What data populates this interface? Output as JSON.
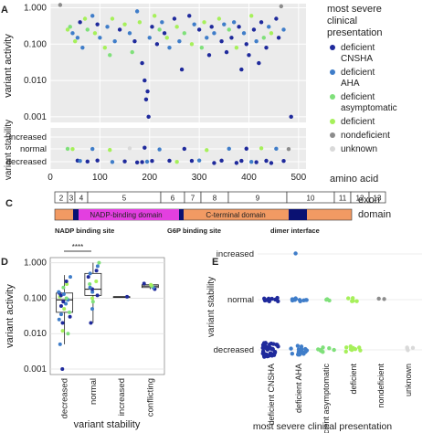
{
  "colors": {
    "deficient_CNSHA": "#1f2a9c",
    "deficient_AHA": "#3f7dc9",
    "deficient_asymptomatic": "#7fe07a",
    "deficient": "#a6f05a",
    "nondeficient": "#8c8c8c",
    "unknown": "#d9d9d9",
    "nadp_domain": "#e33fe0",
    "cterm_domain": "#f29a63",
    "dark_domain": "#0a1172",
    "panel_bg": "#ebebeb",
    "grid": "#ffffff"
  },
  "panelA": {
    "ylabel": "variant activity",
    "yticks": [
      "1.000",
      "0.100",
      "0.010",
      "0.001"
    ],
    "legend_title": "most severe clinical presentation",
    "legend_title_lines": [
      "most severe",
      "clinical",
      "presentation"
    ],
    "legend": [
      {
        "key": "deficient_CNSHA",
        "lines": [
          "deficient",
          "CNSHA"
        ]
      },
      {
        "key": "deficient_AHA",
        "lines": [
          "deficient",
          "AHA"
        ]
      },
      {
        "key": "deficient_asymptomatic",
        "lines": [
          "deficient",
          "asymptomatic"
        ]
      },
      {
        "key": "deficient",
        "lines": [
          "deficient"
        ]
      },
      {
        "key": "nondeficient",
        "lines": [
          "nondeficient"
        ]
      },
      {
        "key": "unknown",
        "lines": [
          "unknown"
        ]
      }
    ]
  },
  "panelB": {
    "ylabel": "variant stability",
    "ylabel_visible": "variant stability",
    "yticks": [
      "increased",
      "normal",
      "decreased"
    ],
    "xticks": [
      "0",
      "100",
      "200",
      "300",
      "400",
      "500"
    ],
    "xlabel": "amino acid"
  },
  "panelC": {
    "label": "C",
    "exon_label": "exon",
    "domain_label": "domain",
    "exons": [
      "2",
      "3",
      "4",
      "5",
      "6",
      "7",
      "8",
      "9",
      "10",
      "11",
      "12",
      "13"
    ],
    "nadp_domain": "NADP-binding domain",
    "cterm_domain": "C-terminal domain",
    "sites": [
      "NADP binding site",
      "G6P binding site",
      "dimer interface"
    ]
  },
  "panelD": {
    "ylabel": "variant activity",
    "yticks": [
      "1.000",
      "0.100",
      "0.010",
      "0.001"
    ],
    "categories": [
      "decreased",
      "normal",
      "increased",
      "conflicting"
    ],
    "xlabel": "variant stability",
    "significance": "****"
  },
  "panelE": {
    "label": "E",
    "ylabel": "variant stability",
    "yticks": [
      "increased",
      "normal",
      "decreased"
    ],
    "categories": [
      "deficient CNSHA",
      "deficient AHA",
      "deficient asymptomatic",
      "deficient",
      "nondeficient",
      "unknown"
    ],
    "xlabel": "most severe clinical presentation"
  },
  "chart_data": [
    {
      "type": "scatter",
      "panel": "A",
      "x_label": "amino acid",
      "y_label": "variant activity",
      "y_scale": "log",
      "ylim": [
        0.0007,
        1.3
      ],
      "xlim": [
        0,
        515
      ],
      "points": [
        {
          "x": 20,
          "y": 1.2,
          "c": "nondeficient"
        },
        {
          "x": 35,
          "y": 0.25,
          "c": "deficient"
        },
        {
          "x": 40,
          "y": 0.3,
          "c": "deficient_asymptomatic"
        },
        {
          "x": 45,
          "y": 0.2,
          "c": "deficient_AHA"
        },
        {
          "x": 50,
          "y": 0.12,
          "c": "deficient"
        },
        {
          "x": 55,
          "y": 0.15,
          "c": "deficient_AHA"
        },
        {
          "x": 60,
          "y": 0.4,
          "c": "deficient_CNSHA"
        },
        {
          "x": 65,
          "y": 0.08,
          "c": "deficient_AHA"
        },
        {
          "x": 70,
          "y": 0.5,
          "c": "deficient"
        },
        {
          "x": 75,
          "y": 0.25,
          "c": "deficient_asymptomatic"
        },
        {
          "x": 85,
          "y": 0.6,
          "c": "deficient_AHA"
        },
        {
          "x": 90,
          "y": 0.2,
          "c": "deficient"
        },
        {
          "x": 95,
          "y": 0.35,
          "c": "deficient_CNSHA"
        },
        {
          "x": 100,
          "y": 0.15,
          "c": "deficient_AHA"
        },
        {
          "x": 110,
          "y": 0.08,
          "c": "deficient"
        },
        {
          "x": 115,
          "y": 0.3,
          "c": "deficient_AHA"
        },
        {
          "x": 120,
          "y": 0.05,
          "c": "deficient_asymptomatic"
        },
        {
          "x": 125,
          "y": 0.5,
          "c": "deficient"
        },
        {
          "x": 130,
          "y": 0.12,
          "c": "deficient_AHA"
        },
        {
          "x": 140,
          "y": 0.25,
          "c": "deficient_CNSHA"
        },
        {
          "x": 150,
          "y": 0.35,
          "c": "deficient"
        },
        {
          "x": 160,
          "y": 0.2,
          "c": "deficient_AHA"
        },
        {
          "x": 165,
          "y": 0.06,
          "c": "deficient_asymptomatic"
        },
        {
          "x": 170,
          "y": 0.12,
          "c": "deficient_CNSHA"
        },
        {
          "x": 175,
          "y": 0.8,
          "c": "deficient_AHA"
        },
        {
          "x": 180,
          "y": 0.4,
          "c": "deficient"
        },
        {
          "x": 185,
          "y": 0.03,
          "c": "deficient_CNSHA"
        },
        {
          "x": 190,
          "y": 0.01,
          "c": "deficient_CNSHA"
        },
        {
          "x": 193,
          "y": 0.003,
          "c": "deficient_CNSHA"
        },
        {
          "x": 196,
          "y": 0.005,
          "c": "deficient_CNSHA"
        },
        {
          "x": 198,
          "y": 0.001,
          "c": "deficient_CNSHA"
        },
        {
          "x": 200,
          "y": 0.15,
          "c": "deficient_AHA"
        },
        {
          "x": 205,
          "y": 0.3,
          "c": "deficient_CNSHA"
        },
        {
          "x": 210,
          "y": 0.6,
          "c": "deficient"
        },
        {
          "x": 215,
          "y": 0.1,
          "c": "deficient_CNSHA"
        },
        {
          "x": 220,
          "y": 0.25,
          "c": "deficient_asymptomatic"
        },
        {
          "x": 225,
          "y": 0.4,
          "c": "deficient_AHA"
        },
        {
          "x": 230,
          "y": 0.2,
          "c": "deficient_CNSHA"
        },
        {
          "x": 235,
          "y": 0.15,
          "c": "deficient"
        },
        {
          "x": 240,
          "y": 0.08,
          "c": "deficient_AHA"
        },
        {
          "x": 250,
          "y": 0.5,
          "c": "deficient_CNSHA"
        },
        {
          "x": 255,
          "y": 0.3,
          "c": "deficient"
        },
        {
          "x": 260,
          "y": 0.12,
          "c": "deficient_AHA"
        },
        {
          "x": 265,
          "y": 0.02,
          "c": "deficient_CNSHA"
        },
        {
          "x": 270,
          "y": 0.2,
          "c": "deficient_asymptomatic"
        },
        {
          "x": 280,
          "y": 0.6,
          "c": "deficient_CNSHA"
        },
        {
          "x": 285,
          "y": 0.1,
          "c": "deficient"
        },
        {
          "x": 290,
          "y": 0.35,
          "c": "deficient_AHA"
        },
        {
          "x": 300,
          "y": 0.25,
          "c": "deficient_CNSHA"
        },
        {
          "x": 305,
          "y": 0.08,
          "c": "deficient_asymptomatic"
        },
        {
          "x": 310,
          "y": 0.4,
          "c": "deficient"
        },
        {
          "x": 315,
          "y": 0.15,
          "c": "deficient_AHA"
        },
        {
          "x": 320,
          "y": 0.05,
          "c": "deficient_CNSHA"
        },
        {
          "x": 325,
          "y": 0.3,
          "c": "deficient_CNSHA"
        },
        {
          "x": 330,
          "y": 0.2,
          "c": "deficient_AHA"
        },
        {
          "x": 340,
          "y": 0.5,
          "c": "deficient"
        },
        {
          "x": 345,
          "y": 0.12,
          "c": "deficient_CNSHA"
        },
        {
          "x": 350,
          "y": 0.35,
          "c": "deficient_AHA"
        },
        {
          "x": 355,
          "y": 0.06,
          "c": "deficient_CNSHA"
        },
        {
          "x": 360,
          "y": 0.25,
          "c": "deficient_asymptomatic"
        },
        {
          "x": 365,
          "y": 0.15,
          "c": "deficient_CNSHA"
        },
        {
          "x": 370,
          "y": 0.4,
          "c": "deficient_AHA"
        },
        {
          "x": 375,
          "y": 0.08,
          "c": "deficient"
        },
        {
          "x": 380,
          "y": 0.3,
          "c": "deficient_CNSHA"
        },
        {
          "x": 385,
          "y": 0.02,
          "c": "deficient_CNSHA"
        },
        {
          "x": 390,
          "y": 0.2,
          "c": "deficient_AHA"
        },
        {
          "x": 395,
          "y": 0.1,
          "c": "deficient_CNSHA"
        },
        {
          "x": 400,
          "y": 0.05,
          "c": "deficient_CNSHA"
        },
        {
          "x": 405,
          "y": 0.6,
          "c": "deficient"
        },
        {
          "x": 410,
          "y": 0.25,
          "c": "deficient_CNSHA"
        },
        {
          "x": 415,
          "y": 0.12,
          "c": "deficient_AHA"
        },
        {
          "x": 420,
          "y": 0.03,
          "c": "deficient_CNSHA"
        },
        {
          "x": 425,
          "y": 0.4,
          "c": "deficient_CNSHA"
        },
        {
          "x": 430,
          "y": 0.15,
          "c": "deficient_asymptomatic"
        },
        {
          "x": 435,
          "y": 0.08,
          "c": "deficient_CNSHA"
        },
        {
          "x": 440,
          "y": 0.3,
          "c": "deficient_AHA"
        },
        {
          "x": 445,
          "y": 0.2,
          "c": "deficient"
        },
        {
          "x": 455,
          "y": 0.5,
          "c": "deficient_CNSHA"
        },
        {
          "x": 460,
          "y": 0.15,
          "c": "deficient_CNSHA"
        },
        {
          "x": 465,
          "y": 1.1,
          "c": "nondeficient"
        },
        {
          "x": 470,
          "y": 0.25,
          "c": "deficient_AHA"
        },
        {
          "x": 485,
          "y": 0.001,
          "c": "deficient_CNSHA"
        }
      ]
    },
    {
      "type": "scatter",
      "panel": "B",
      "x_label": "amino acid",
      "y_label": "variant stability",
      "xlim": [
        0,
        515
      ],
      "categories_y": [
        "decreased",
        "normal",
        "increased"
      ],
      "points": [
        {
          "x": 35,
          "y": "normal",
          "c": "deficient_asymptomatic"
        },
        {
          "x": 45,
          "y": "normal",
          "c": "deficient"
        },
        {
          "x": 55,
          "y": "decreased",
          "c": "deficient_CNSHA"
        },
        {
          "x": 60,
          "y": "decreased",
          "c": "deficient_AHA"
        },
        {
          "x": 75,
          "y": "decreased",
          "c": "deficient_CNSHA"
        },
        {
          "x": 85,
          "y": "normal",
          "c": "deficient_AHA"
        },
        {
          "x": 95,
          "y": "decreased",
          "c": "deficient_CNSHA"
        },
        {
          "x": 120,
          "y": "normal",
          "c": "deficient"
        },
        {
          "x": 125,
          "y": "decreased",
          "c": "deficient_AHA"
        },
        {
          "x": 150,
          "y": "decreased",
          "c": "deficient_CNSHA"
        },
        {
          "x": 160,
          "y": "normal",
          "c": "unknown"
        },
        {
          "x": 175,
          "y": "decreased",
          "c": "deficient_CNSHA"
        },
        {
          "x": 185,
          "y": "decreased",
          "c": "deficient_CNSHA"
        },
        {
          "x": 190,
          "y": "normal",
          "c": "deficient_CNSHA"
        },
        {
          "x": 195,
          "y": "decreased",
          "c": "deficient_AHA"
        },
        {
          "x": 205,
          "y": "decreased",
          "c": "deficient_CNSHA"
        },
        {
          "x": 220,
          "y": "normal",
          "c": "deficient_AHA"
        },
        {
          "x": 240,
          "y": "decreased",
          "c": "deficient_CNSHA"
        },
        {
          "x": 255,
          "y": "decreased",
          "c": "deficient"
        },
        {
          "x": 270,
          "y": "normal",
          "c": "deficient_CNSHA"
        },
        {
          "x": 285,
          "y": "decreased",
          "c": "deficient_CNSHA"
        },
        {
          "x": 300,
          "y": "decreased",
          "c": "deficient_AHA"
        },
        {
          "x": 315,
          "y": "normal",
          "c": "deficient"
        },
        {
          "x": 330,
          "y": "decreased",
          "c": "deficient_CNSHA"
        },
        {
          "x": 345,
          "y": "decreased",
          "c": "deficient_CNSHA"
        },
        {
          "x": 360,
          "y": "normal",
          "c": "deficient_AHA"
        },
        {
          "x": 375,
          "y": "decreased",
          "c": "deficient_CNSHA"
        },
        {
          "x": 385,
          "y": "decreased",
          "c": "deficient_CNSHA"
        },
        {
          "x": 395,
          "y": "normal",
          "c": "deficient_CNSHA"
        },
        {
          "x": 405,
          "y": "decreased",
          "c": "deficient_AHA"
        },
        {
          "x": 415,
          "y": "decreased",
          "c": "deficient_CNSHA"
        },
        {
          "x": 425,
          "y": "normal",
          "c": "deficient"
        },
        {
          "x": 435,
          "y": "decreased",
          "c": "deficient_CNSHA"
        },
        {
          "x": 445,
          "y": "decreased",
          "c": "deficient_CNSHA"
        },
        {
          "x": 455,
          "y": "normal",
          "c": "deficient_AHA"
        },
        {
          "x": 470,
          "y": "decreased",
          "c": "deficient_CNSHA"
        },
        {
          "x": 480,
          "y": "normal",
          "c": "nondeficient"
        }
      ]
    },
    {
      "type": "box",
      "panel": "D",
      "x_label": "variant stability",
      "y_label": "variant activity",
      "y_scale": "log",
      "ylim": [
        0.0007,
        1.4
      ],
      "categories": [
        "decreased",
        "normal",
        "increased",
        "conflicting"
      ],
      "boxes": [
        {
          "category": "decreased",
          "q1": 0.04,
          "median": 0.09,
          "q3": 0.14,
          "whisker_low": 0.005,
          "whisker_high": 0.45
        },
        {
          "category": "normal",
          "q1": 0.12,
          "median": 0.18,
          "q3": 0.5,
          "whisker_low": 0.02,
          "whisker_high": 1.0
        },
        {
          "category": "increased",
          "q1": 0.11,
          "median": 0.11,
          "q3": 0.11,
          "whisker_low": 0.11,
          "whisker_high": 0.11
        },
        {
          "category": "conflicting",
          "q1": 0.2,
          "median": 0.22,
          "q3": 0.24,
          "whisker_low": 0.18,
          "whisker_high": 0.26
        }
      ],
      "points": [
        {
          "category": "decreased",
          "values": [
            0.001,
            0.005,
            0.01,
            0.012,
            0.02,
            0.025,
            0.03,
            0.035,
            0.04,
            0.05,
            0.06,
            0.07,
            0.08,
            0.09,
            0.1,
            0.11,
            0.12,
            0.13,
            0.14,
            0.15,
            0.2,
            0.25,
            0.3,
            0.4
          ]
        },
        {
          "category": "normal",
          "values": [
            0.02,
            0.05,
            0.08,
            0.1,
            0.12,
            0.15,
            0.18,
            0.2,
            0.25,
            0.3,
            0.4,
            0.5,
            0.6,
            0.8,
            1.0
          ]
        },
        {
          "category": "increased",
          "values": [
            0.11
          ]
        },
        {
          "category": "conflicting",
          "values": [
            0.18,
            0.2,
            0.22,
            0.24,
            0.26
          ]
        }
      ]
    },
    {
      "type": "strip",
      "panel": "E",
      "x_label": "most severe clinical presentation",
      "y_label": "variant stability",
      "categories": [
        "deficient CNSHA",
        "deficient AHA",
        "deficient asymptomatic",
        "deficient",
        "nondeficient",
        "unknown"
      ],
      "counts": {
        "decreased": [
          40,
          18,
          8,
          9,
          0,
          4
        ],
        "normal": [
          10,
          12,
          3,
          5,
          2,
          0
        ],
        "increased": [
          0,
          1,
          0,
          0,
          0,
          0
        ]
      }
    }
  ]
}
